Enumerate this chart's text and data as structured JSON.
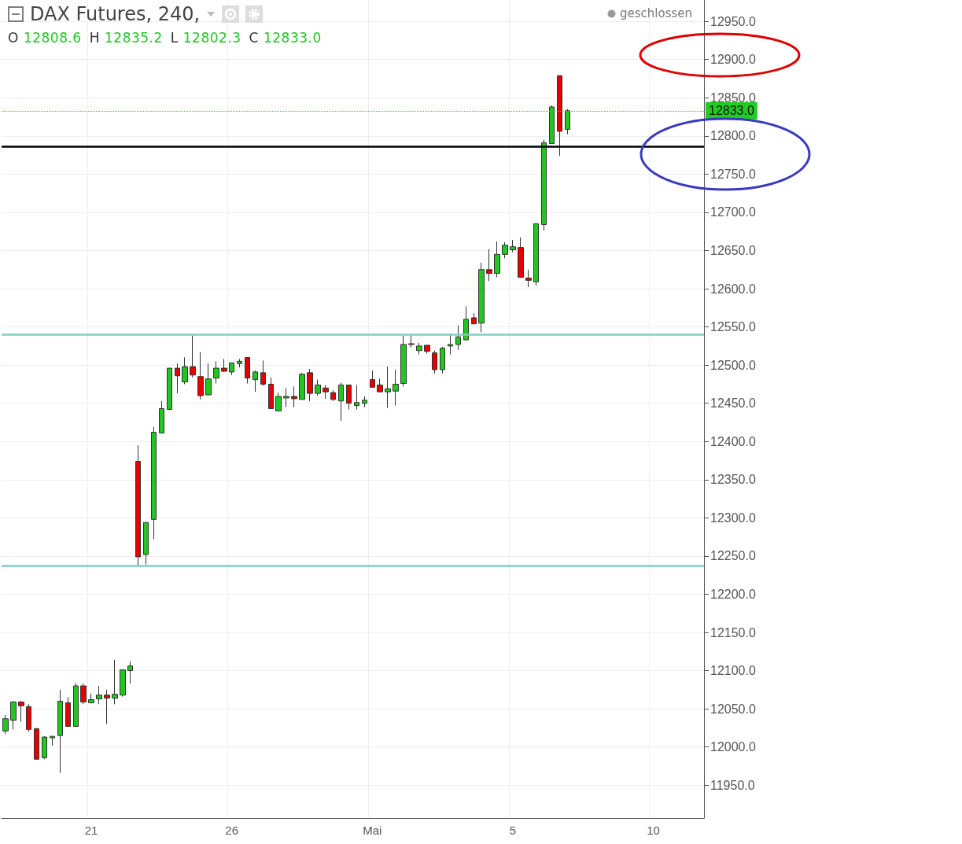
{
  "chart_data": {
    "type": "candlestick",
    "title": "DAX Futures, 240,",
    "subtitle": "O 12808.6 H 12835.2 L 12802.3 C 12833.0",
    "annotations": [
      "geschlossen"
    ],
    "categories": [
      null,
      null,
      null,
      null,
      null,
      null,
      null,
      null,
      null,
      null,
      null,
      "21",
      null,
      null,
      null,
      null,
      null,
      null,
      null,
      null,
      null,
      null,
      null,
      null,
      null,
      null,
      null,
      null,
      null,
      "26",
      null,
      null,
      null,
      null,
      null,
      null,
      null,
      null,
      null,
      null,
      null,
      null,
      null,
      null,
      null,
      null,
      null,
      "Mai",
      null,
      null,
      null,
      null,
      null,
      null,
      null,
      null,
      null,
      null,
      null,
      null,
      null,
      null,
      null,
      null,
      null,
      "5",
      null,
      null,
      null,
      null,
      null,
      null,
      null,
      null,
      null,
      null,
      null,
      null,
      null,
      null,
      null,
      null,
      null,
      "10",
      null,
      null,
      null,
      null,
      null,
      null
    ],
    "ohlc": [
      [
        12021,
        12042,
        12017,
        12037
      ],
      [
        12035,
        12060,
        12023,
        12059
      ],
      [
        12059,
        12060,
        12033,
        12054
      ],
      [
        12053,
        12056,
        12020,
        12023
      ],
      [
        12024,
        12025,
        11984,
        11984
      ],
      [
        11986,
        12014,
        11984,
        12013
      ],
      [
        12012,
        12014,
        12002,
        12014
      ],
      [
        12015,
        12075,
        11966,
        12060
      ],
      [
        12058,
        12065,
        12027,
        12027
      ],
      [
        12027,
        12084,
        12027,
        12080
      ],
      [
        12080,
        12083,
        12056,
        12059
      ],
      [
        12058,
        12070,
        12057,
        12062
      ],
      [
        12063,
        12080,
        12056,
        12068
      ],
      [
        12068,
        12075,
        12030,
        12064
      ],
      [
        12064,
        12114,
        12056,
        12069
      ],
      [
        12068,
        12101,
        12066,
        12101
      ],
      [
        12100,
        12112,
        12083,
        12106
      ],
      [
        12374,
        12395,
        12238,
        12249
      ],
      [
        12252,
        12294,
        12239,
        12294
      ],
      [
        12298,
        12419,
        12272,
        12412
      ],
      [
        12411,
        12453,
        12411,
        12443
      ],
      [
        12442,
        12496,
        12441,
        12496
      ],
      [
        12496,
        12502,
        12463,
        12486
      ],
      [
        12478,
        12510,
        12475,
        12498
      ],
      [
        12498,
        12539,
        12484,
        12487
      ],
      [
        12485,
        12517,
        12455,
        12460
      ],
      [
        12461,
        12502,
        12461,
        12482
      ],
      [
        12483,
        12505,
        12476,
        12496
      ],
      [
        12496,
        12508,
        12491,
        12492
      ],
      [
        12491,
        12503,
        12487,
        12503
      ],
      [
        12502,
        12508,
        12497,
        12505
      ],
      [
        12510,
        12510,
        12476,
        12483
      ],
      [
        12481,
        12493,
        12465,
        12491
      ],
      [
        12490,
        12506,
        12473,
        12475
      ],
      [
        12475,
        12484,
        12443,
        12443
      ],
      [
        12440,
        12464,
        12440,
        12459
      ],
      [
        12457,
        12470,
        12445,
        12459
      ],
      [
        12459,
        12472,
        12445,
        12456
      ],
      [
        12455,
        12490,
        12455,
        12488
      ],
      [
        12490,
        12495,
        12453,
        12463
      ],
      [
        12463,
        12481,
        12460,
        12474
      ],
      [
        12470,
        12474,
        12456,
        12465
      ],
      [
        12464,
        12467,
        12453,
        12455
      ],
      [
        12453,
        12477,
        12427,
        12474
      ],
      [
        12474,
        12474,
        12442,
        12450
      ],
      [
        12447,
        12474,
        12442,
        12451
      ],
      [
        12450,
        12459,
        12445,
        12454
      ],
      [
        12481,
        12493,
        12471,
        12471
      ],
      [
        12474,
        12482,
        12465,
        12465
      ],
      [
        12465,
        12498,
        12444,
        12469
      ],
      [
        12466,
        12494,
        12447,
        12475
      ],
      [
        12476,
        12539,
        12472,
        12527
      ],
      [
        12528,
        12539,
        12523,
        12527
      ],
      [
        12519,
        12529,
        12514,
        12525
      ],
      [
        12526,
        12526,
        12515,
        12518
      ],
      [
        12516,
        12519,
        12489,
        12494
      ],
      [
        12494,
        12524,
        12489,
        12522
      ],
      [
        12525,
        12541,
        12514,
        12527
      ],
      [
        12527,
        12552,
        12520,
        12537
      ],
      [
        12533,
        12577,
        12533,
        12560
      ],
      [
        12562,
        12568,
        12554,
        12554
      ],
      [
        12555,
        12634,
        12543,
        12625
      ],
      [
        12625,
        12652,
        12610,
        12620
      ],
      [
        12620,
        12662,
        12615,
        12645
      ],
      [
        12645,
        12661,
        12640,
        12657
      ],
      [
        12651,
        12664,
        12648,
        12655
      ],
      [
        12654,
        12667,
        12615,
        12615
      ],
      [
        12614,
        12625,
        12602,
        12611
      ],
      [
        12609,
        12685,
        12604,
        12685
      ],
      [
        12684,
        12795,
        12676,
        12791
      ],
      [
        12790,
        12840,
        12790,
        12838
      ],
      [
        12879,
        12879,
        12774,
        12806
      ],
      [
        12808.6,
        12835.2,
        12802.3,
        12833.0
      ],
      null,
      null,
      null,
      null,
      null,
      null,
      null,
      null,
      null,
      null,
      null,
      null,
      null,
      null,
      null,
      null,
      null
    ],
    "ylim": [
      11907,
      12978
    ],
    "yticks": [
      {
        "value": 11950,
        "label": "11950.0"
      },
      {
        "value": 12000,
        "label": "12000.0"
      },
      {
        "value": 12050,
        "label": "12050.0"
      },
      {
        "value": 12100,
        "label": "12100.0"
      },
      {
        "value": 12150,
        "label": "12150.0"
      },
      {
        "value": 12200,
        "label": "12200.0"
      },
      {
        "value": 12250,
        "label": "12250.0"
      },
      {
        "value": 12300,
        "label": "12300.0"
      },
      {
        "value": 12350,
        "label": "12350.0"
      },
      {
        "value": 12400,
        "label": "12400.0"
      },
      {
        "value": 12450,
        "label": "12450.0"
      },
      {
        "value": 12500,
        "label": "12500.0"
      },
      {
        "value": 12550,
        "label": "12550.0"
      },
      {
        "value": 12600,
        "label": "12600.0"
      },
      {
        "value": 12650,
        "label": "12650.0"
      },
      {
        "value": 12700,
        "label": "12700.0"
      },
      {
        "value": 12750,
        "label": "12750.0"
      },
      {
        "value": 12800,
        "label": "12800.0"
      },
      {
        "value": 12850,
        "label": "12850.0"
      },
      {
        "value": 12900,
        "label": "12900.0"
      },
      {
        "value": 12950,
        "label": "12950.0"
      }
    ],
    "ref_lines": [
      {
        "axis": "y",
        "value": 12540,
        "color": "#7fcfc0"
      },
      {
        "axis": "y",
        "value": 12237,
        "color": "#7fcfc0"
      },
      {
        "axis": "y",
        "value": 12786,
        "color": "#000000"
      },
      {
        "axis": "y",
        "value": 12833,
        "label": "12833.0",
        "color": "#22cc22",
        "line_style": "dotted"
      }
    ],
    "grid": true
  }
}
